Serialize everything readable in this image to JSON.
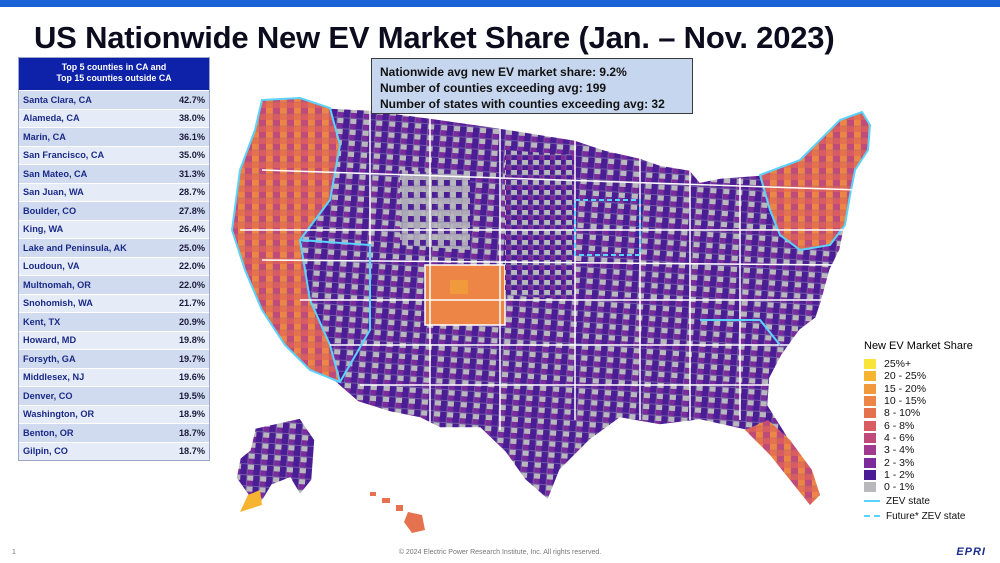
{
  "title": "US Nationwide New EV Market Share (Jan. – Nov. 2023)",
  "table": {
    "header_line1": "Top 5 counties in CA and",
    "header_line2": "Top 15 counties outside CA",
    "rows": [
      {
        "county": "Santa Clara, CA",
        "share": "42.7%"
      },
      {
        "county": "Alameda, CA",
        "share": "38.0%"
      },
      {
        "county": "Marin, CA",
        "share": "36.1%"
      },
      {
        "county": "San Francisco, CA",
        "share": "35.0%"
      },
      {
        "county": "San Mateo, CA",
        "share": "31.3%"
      },
      {
        "county": "San Juan, WA",
        "share": "28.7%"
      },
      {
        "county": "Boulder, CO",
        "share": "27.8%"
      },
      {
        "county": "King, WA",
        "share": "26.4%"
      },
      {
        "county": "Lake and Peninsula, AK",
        "share": "25.0%"
      },
      {
        "county": "Loudoun, VA",
        "share": "22.0%"
      },
      {
        "county": "Multnomah, OR",
        "share": "22.0%"
      },
      {
        "county": "Snohomish, WA",
        "share": "21.7%"
      },
      {
        "county": "Kent, TX",
        "share": "20.9%"
      },
      {
        "county": "Howard, MD",
        "share": "19.8%"
      },
      {
        "county": "Forsyth, GA",
        "share": "19.7%"
      },
      {
        "county": "Middlesex, NJ",
        "share": "19.6%"
      },
      {
        "county": "Denver, CO",
        "share": "19.5%"
      },
      {
        "county": "Washington, OR",
        "share": "18.9%"
      },
      {
        "county": "Benton, OR",
        "share": "18.7%"
      },
      {
        "county": "Gilpin, CO",
        "share": "18.7%"
      }
    ]
  },
  "stats": {
    "line1": "Nationwide avg new EV market share: 9.2%",
    "line2": "Number of counties exceeding avg: 199",
    "line3": "Number of states with counties exceeding avg: 32"
  },
  "legend": {
    "title": "New EV Market Share",
    "items": [
      {
        "label": "25%+",
        "color": "#f9e43a"
      },
      {
        "label": "20 - 25%",
        "color": "#f6b431"
      },
      {
        "label": "15 - 20%",
        "color": "#f19a3b"
      },
      {
        "label": "10 - 15%",
        "color": "#ed8546"
      },
      {
        "label": "8 - 10%",
        "color": "#e5724f"
      },
      {
        "label": "6 - 8%",
        "color": "#d85c62"
      },
      {
        "label": "4 - 6%",
        "color": "#c04a7a"
      },
      {
        "label": "3 - 4%",
        "color": "#a03a8e"
      },
      {
        "label": "2 - 3%",
        "color": "#7d2a9a"
      },
      {
        "label": "1 - 2%",
        "color": "#4b1d95"
      },
      {
        "label": "0 - 1%",
        "color": "#b9b9bd"
      }
    ],
    "zev_state": "ZEV state",
    "future_zev_state": "Future* ZEV state",
    "zev_color": "#5ad3ff"
  },
  "footer": {
    "page": "1",
    "copyright": "© 2024 Electric Power Research Institute, Inc. All rights reserved.",
    "brand": "EPRI"
  },
  "colors": {
    "accent_bar": "#1a63d6",
    "table_header": "#0d22a8",
    "state_border": "#ffffff"
  }
}
